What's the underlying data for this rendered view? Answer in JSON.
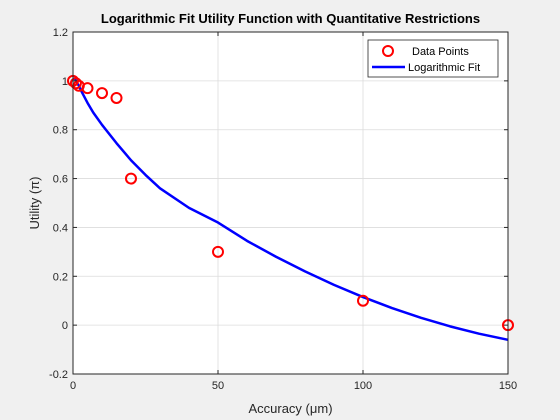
{
  "chart_data": {
    "type": "scatter",
    "title": "Logarithmic Fit Utility Function with Quantitative Restrictions",
    "xlabel": "Accuracy (μm)",
    "ylabel": "Utility (π)",
    "xlim": [
      0,
      150
    ],
    "ylim": [
      -0.2,
      1.2
    ],
    "x_ticks": [
      0,
      50,
      100,
      150
    ],
    "x_tick_labels": [
      "0",
      "50",
      "100",
      "150"
    ],
    "y_ticks": [
      -0.2,
      0,
      0.2,
      0.4,
      0.6,
      0.8,
      1,
      1.2
    ],
    "y_tick_labels": [
      "-0.2",
      "0",
      "0.2",
      "0.4",
      "0.6",
      "0.8",
      "1",
      "1.2"
    ],
    "grid": true,
    "legend_position": "top-right",
    "series": [
      {
        "name": "Data Points",
        "kind": "scatter",
        "marker": "circle",
        "color": "#ff0000",
        "x": [
          0,
          1,
          2,
          5,
          10,
          15,
          20,
          50,
          100,
          150
        ],
        "y": [
          1.0,
          0.99,
          0.98,
          0.97,
          0.95,
          0.93,
          0.6,
          0.3,
          0.1,
          0.0
        ]
      },
      {
        "name": "Logarithmic Fit",
        "kind": "line",
        "color": "#0000ff",
        "x": [
          0.5,
          1,
          2,
          3,
          5,
          7,
          10,
          15,
          20,
          25,
          30,
          40,
          50,
          60,
          70,
          80,
          90,
          100,
          110,
          120,
          130,
          140,
          150
        ],
        "y": [
          1.015,
          1.0,
          0.98,
          0.955,
          0.91,
          0.87,
          0.82,
          0.745,
          0.675,
          0.615,
          0.56,
          0.48,
          0.42,
          0.345,
          0.28,
          0.22,
          0.165,
          0.115,
          0.07,
          0.03,
          -0.005,
          -0.035,
          -0.06
        ]
      }
    ]
  }
}
